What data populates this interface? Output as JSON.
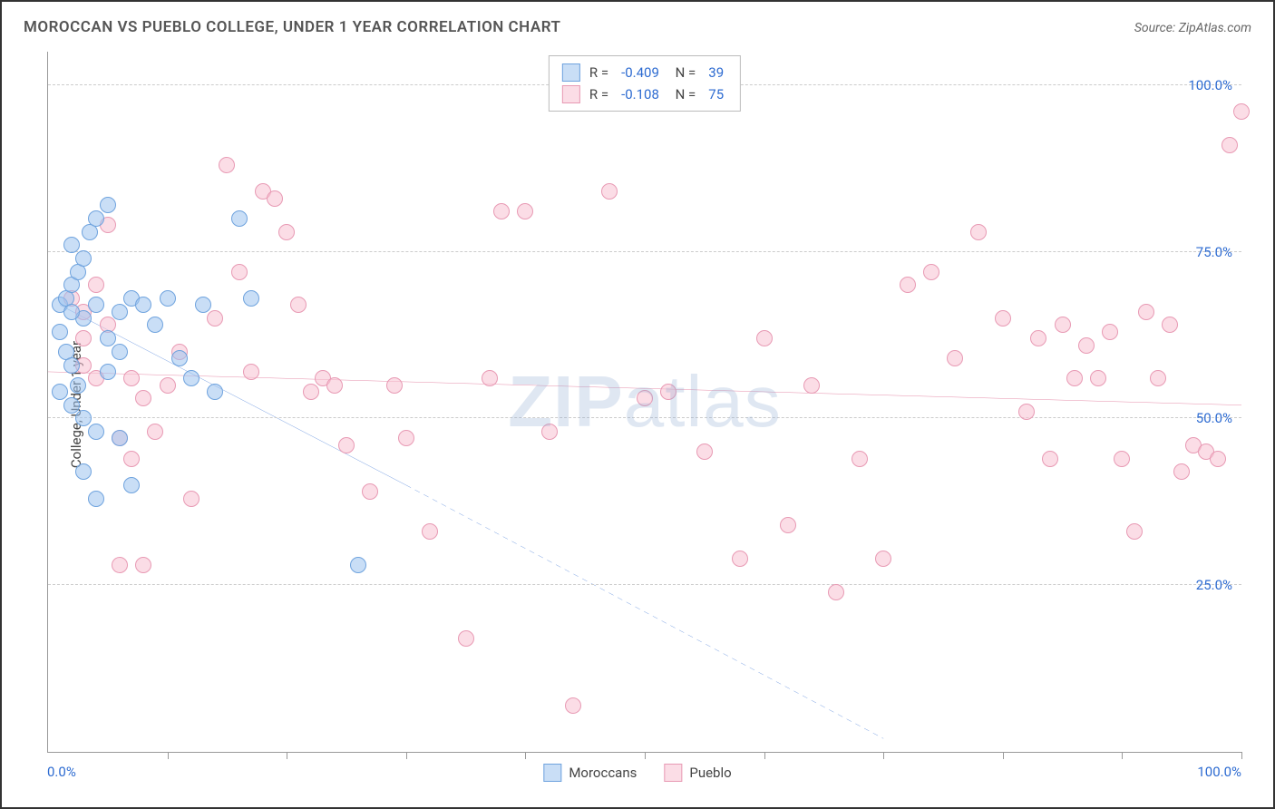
{
  "chart": {
    "type": "scatter",
    "title": "MOROCCAN VS PUEBLO COLLEGE, UNDER 1 YEAR CORRELATION CHART",
    "source": "Source: ZipAtlas.com",
    "ylabel": "College, Under 1 year",
    "watermark": "ZIPatlas",
    "background_color": "#ffffff",
    "grid_color": "#cccccc",
    "axis_color": "#999999",
    "text_color": "#555555",
    "value_color": "#2d6bd1",
    "title_fontsize": 17,
    "label_fontsize": 15,
    "xlim": [
      0,
      100
    ],
    "ylim": [
      0,
      105
    ],
    "x_ticks": [
      10,
      20,
      30,
      40,
      50,
      60,
      70,
      80,
      90,
      100
    ],
    "y_gridlines": [
      25,
      50,
      75,
      100
    ],
    "y_tick_labels": [
      "25.0%",
      "50.0%",
      "75.0%",
      "100.0%"
    ],
    "x_axis_labels": {
      "left": "0.0%",
      "right": "100.0%"
    },
    "marker_radius": 9,
    "marker_stroke_width": 1.5,
    "trend_line_width": 2.5,
    "series": [
      {
        "name": "Moroccans",
        "fill_color": "rgba(157,195,238,0.55)",
        "stroke_color": "#6fa3de",
        "line_color": "#2d6bd1",
        "R": "-0.409",
        "N": "39",
        "trend": {
          "x1": 1,
          "y1": 67,
          "x2": 30,
          "y2": 40,
          "x2_ext": 70,
          "y2_ext": 2
        },
        "points": [
          [
            1,
            67
          ],
          [
            1.5,
            68
          ],
          [
            2,
            70
          ],
          [
            2.5,
            72
          ],
          [
            3,
            74
          ],
          [
            2,
            76
          ],
          [
            3.5,
            78
          ],
          [
            4,
            80
          ],
          [
            5,
            82
          ],
          [
            1,
            63
          ],
          [
            1.5,
            60
          ],
          [
            2,
            58
          ],
          [
            2.5,
            55
          ],
          [
            3,
            65
          ],
          [
            4,
            67
          ],
          [
            5,
            62
          ],
          [
            6,
            66
          ],
          [
            7,
            68
          ],
          [
            1,
            54
          ],
          [
            2,
            52
          ],
          [
            3,
            50
          ],
          [
            4,
            48
          ],
          [
            5,
            57
          ],
          [
            6,
            47
          ],
          [
            3,
            42
          ],
          [
            4,
            38
          ],
          [
            8,
            67
          ],
          [
            9,
            64
          ],
          [
            10,
            68
          ],
          [
            11,
            59
          ],
          [
            12,
            56
          ],
          [
            13,
            67
          ],
          [
            14,
            54
          ],
          [
            7,
            40
          ],
          [
            16,
            80
          ],
          [
            17,
            68
          ],
          [
            26,
            28
          ],
          [
            6,
            60
          ],
          [
            2,
            66
          ]
        ]
      },
      {
        "name": "Pueblo",
        "fill_color": "rgba(247,193,210,0.55)",
        "stroke_color": "#e89ab4",
        "line_color": "#d64d7a",
        "R": "-0.108",
        "N": "75",
        "trend": {
          "x1": 0,
          "y1": 57,
          "x2": 100,
          "y2": 52
        },
        "points": [
          [
            3,
            66
          ],
          [
            5,
            79
          ],
          [
            7,
            56
          ],
          [
            8,
            53
          ],
          [
            9,
            48
          ],
          [
            10,
            55
          ],
          [
            11,
            60
          ],
          [
            12,
            38
          ],
          [
            14,
            65
          ],
          [
            15,
            88
          ],
          [
            16,
            72
          ],
          [
            17,
            57
          ],
          [
            18,
            84
          ],
          [
            19,
            83
          ],
          [
            20,
            78
          ],
          [
            21,
            67
          ],
          [
            22,
            54
          ],
          [
            23,
            56
          ],
          [
            24,
            55
          ],
          [
            25,
            46
          ],
          [
            27,
            39
          ],
          [
            29,
            55
          ],
          [
            30,
            47
          ],
          [
            32,
            33
          ],
          [
            35,
            17
          ],
          [
            37,
            56
          ],
          [
            38,
            81
          ],
          [
            40,
            81
          ],
          [
            42,
            48
          ],
          [
            44,
            7
          ],
          [
            47,
            84
          ],
          [
            50,
            53
          ],
          [
            52,
            54
          ],
          [
            55,
            45
          ],
          [
            58,
            29
          ],
          [
            60,
            62
          ],
          [
            62,
            34
          ],
          [
            64,
            55
          ],
          [
            66,
            24
          ],
          [
            68,
            44
          ],
          [
            70,
            29
          ],
          [
            72,
            70
          ],
          [
            74,
            72
          ],
          [
            76,
            59
          ],
          [
            78,
            78
          ],
          [
            80,
            65
          ],
          [
            82,
            51
          ],
          [
            83,
            62
          ],
          [
            84,
            44
          ],
          [
            85,
            64
          ],
          [
            86,
            56
          ],
          [
            87,
            61
          ],
          [
            88,
            56
          ],
          [
            89,
            63
          ],
          [
            90,
            44
          ],
          [
            91,
            33
          ],
          [
            92,
            66
          ],
          [
            93,
            56
          ],
          [
            94,
            64
          ],
          [
            95,
            42
          ],
          [
            96,
            46
          ],
          [
            97,
            45
          ],
          [
            98,
            44
          ],
          [
            99,
            91
          ],
          [
            100,
            96
          ],
          [
            8,
            28
          ],
          [
            3,
            62
          ],
          [
            4,
            56
          ],
          [
            5,
            64
          ],
          [
            6,
            47
          ],
          [
            2,
            68
          ],
          [
            4,
            70
          ],
          [
            3,
            58
          ],
          [
            6,
            28
          ],
          [
            7,
            44
          ]
        ]
      }
    ]
  }
}
